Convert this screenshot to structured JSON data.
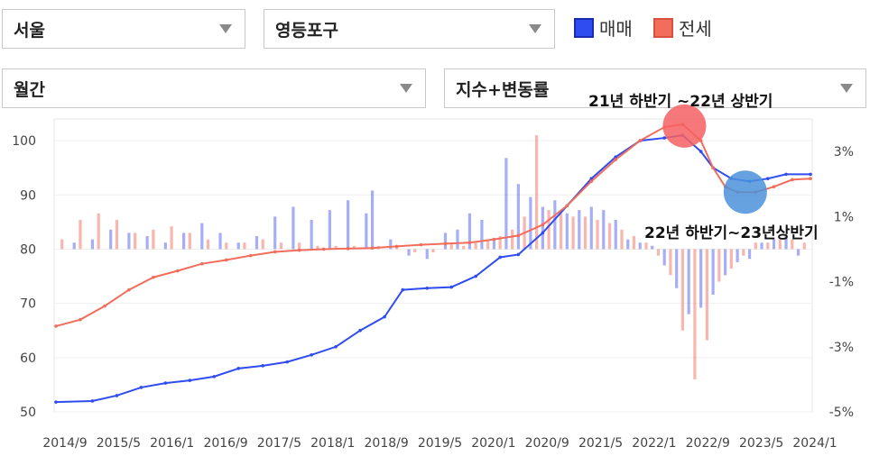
{
  "filters": {
    "region": "서울",
    "district": "영등포구",
    "period": "월간",
    "metric": "지수+변동률"
  },
  "legend": [
    {
      "label": "매매",
      "color": "#2f4cf0"
    },
    {
      "label": "전세",
      "color": "#f26d5b"
    }
  ],
  "chart_data": {
    "type": "line",
    "x_ticks": [
      "2014/9",
      "2015/5",
      "2016/1",
      "2016/9",
      "2017/5",
      "2018/1",
      "2018/9",
      "2019/5",
      "2020/1",
      "2020/9",
      "2021/5",
      "2022/1",
      "2022/9",
      "2023/5",
      "2024/1"
    ],
    "y_left": {
      "ticks": [
        50,
        60,
        70,
        80,
        90,
        100
      ],
      "range": [
        50,
        104
      ]
    },
    "y_right": {
      "ticks": [
        "3%",
        "1%",
        "-1%",
        "-3%",
        "-5%"
      ],
      "range": [
        -5,
        4
      ]
    },
    "series": [
      {
        "name": "매매",
        "color": "#2f4cf0",
        "points": [
          [
            0,
            51.8
          ],
          [
            6,
            52.0
          ],
          [
            10,
            53.0
          ],
          [
            14,
            54.5
          ],
          [
            18,
            55.3
          ],
          [
            22,
            55.8
          ],
          [
            26,
            56.5
          ],
          [
            30,
            58.0
          ],
          [
            34,
            58.5
          ],
          [
            38,
            59.2
          ],
          [
            42,
            60.5
          ],
          [
            46,
            62.0
          ],
          [
            50,
            65.0
          ],
          [
            54,
            67.5
          ],
          [
            57,
            72.5
          ],
          [
            61,
            72.8
          ],
          [
            65,
            73.0
          ],
          [
            69,
            75.0
          ],
          [
            73,
            78.5
          ],
          [
            76,
            79.0
          ],
          [
            80,
            83.0
          ],
          [
            84,
            88.0
          ],
          [
            88,
            93.0
          ],
          [
            92,
            97.0
          ],
          [
            96,
            100.0
          ],
          [
            100,
            100.5
          ],
          [
            103,
            101.0
          ],
          [
            106,
            98.0
          ],
          [
            108,
            95.0
          ],
          [
            111,
            93.0
          ],
          [
            114,
            92.5
          ],
          [
            117,
            93.0
          ],
          [
            120,
            93.8
          ],
          [
            124,
            93.8
          ]
        ]
      },
      {
        "name": "전세",
        "color": "#f26d5b",
        "points": [
          [
            0,
            65.8
          ],
          [
            4,
            67.0
          ],
          [
            8,
            69.5
          ],
          [
            12,
            72.5
          ],
          [
            16,
            74.8
          ],
          [
            20,
            76.0
          ],
          [
            24,
            77.3
          ],
          [
            28,
            78.0
          ],
          [
            32,
            78.8
          ],
          [
            36,
            79.5
          ],
          [
            40,
            79.8
          ],
          [
            44,
            80.0
          ],
          [
            48,
            80.1
          ],
          [
            52,
            80.2
          ],
          [
            56,
            80.5
          ],
          [
            60,
            80.8
          ],
          [
            64,
            81.0
          ],
          [
            68,
            81.2
          ],
          [
            72,
            81.8
          ],
          [
            76,
            82.5
          ],
          [
            80,
            84.5
          ],
          [
            84,
            88.0
          ],
          [
            88,
            92.5
          ],
          [
            92,
            96.5
          ],
          [
            96,
            100.0
          ],
          [
            100,
            102.5
          ],
          [
            103,
            103.0
          ],
          [
            106,
            100.0
          ],
          [
            108,
            95.0
          ],
          [
            110,
            91.5
          ],
          [
            112,
            90.5
          ],
          [
            115,
            90.5
          ],
          [
            118,
            91.5
          ],
          [
            121,
            92.8
          ],
          [
            124,
            93.0
          ]
        ]
      }
    ],
    "rate_bars": {
      "매매": [
        [
          3,
          0.2
        ],
        [
          6,
          0.3
        ],
        [
          9,
          0.6
        ],
        [
          12,
          0.5
        ],
        [
          15,
          0.4
        ],
        [
          18,
          0.2
        ],
        [
          21,
          0.5
        ],
        [
          24,
          0.8
        ],
        [
          27,
          0.5
        ],
        [
          30,
          0.2
        ],
        [
          33,
          0.4
        ],
        [
          36,
          1.0
        ],
        [
          39,
          1.3
        ],
        [
          42,
          0.9
        ],
        [
          45,
          1.2
        ],
        [
          48,
          1.5
        ],
        [
          51,
          1.1
        ],
        [
          52,
          1.8
        ],
        [
          55,
          0.3
        ],
        [
          58,
          -0.2
        ],
        [
          61,
          -0.3
        ],
        [
          64,
          0.5
        ],
        [
          66,
          0.6
        ],
        [
          68,
          1.1
        ],
        [
          70,
          0.9
        ],
        [
          72,
          0.3
        ],
        [
          74,
          2.8
        ],
        [
          76,
          2.0
        ],
        [
          78,
          1.6
        ],
        [
          80,
          1.3
        ],
        [
          82,
          1.5
        ],
        [
          84,
          1.1
        ],
        [
          86,
          1.2
        ],
        [
          88,
          1.3
        ],
        [
          90,
          1.2
        ],
        [
          92,
          0.9
        ],
        [
          94,
          0.3
        ],
        [
          96,
          0.2
        ],
        [
          98,
          0.1
        ],
        [
          100,
          -0.5
        ],
        [
          102,
          -1.2
        ],
        [
          104,
          -2.0
        ],
        [
          106,
          -1.8
        ],
        [
          108,
          -1.4
        ],
        [
          110,
          -0.8
        ],
        [
          112,
          -0.4
        ],
        [
          114,
          -0.3
        ],
        [
          116,
          0.2
        ],
        [
          118,
          0.3
        ],
        [
          120,
          0.4
        ],
        [
          122,
          -0.2
        ]
      ],
      "전세": [
        [
          1,
          0.3
        ],
        [
          4,
          0.9
        ],
        [
          7,
          1.1
        ],
        [
          10,
          0.9
        ],
        [
          13,
          0.5
        ],
        [
          16,
          0.6
        ],
        [
          19,
          0.7
        ],
        [
          22,
          0.5
        ],
        [
          25,
          0.3
        ],
        [
          28,
          0.2
        ],
        [
          31,
          0.2
        ],
        [
          34,
          0.3
        ],
        [
          37,
          0.2
        ],
        [
          40,
          0.2
        ],
        [
          43,
          0.1
        ],
        [
          46,
          0.1
        ],
        [
          49,
          0.1
        ],
        [
          53,
          0.1
        ],
        [
          56,
          0.1
        ],
        [
          59,
          -0.1
        ],
        [
          62,
          -0.1
        ],
        [
          65,
          0.2
        ],
        [
          67,
          0.1
        ],
        [
          69,
          0.2
        ],
        [
          71,
          0.3
        ],
        [
          73,
          0.4
        ],
        [
          75,
          0.6
        ],
        [
          77,
          1.0
        ],
        [
          79,
          3.5
        ],
        [
          81,
          1.2
        ],
        [
          83,
          1.1
        ],
        [
          85,
          1.0
        ],
        [
          87,
          1.0
        ],
        [
          89,
          0.9
        ],
        [
          91,
          0.8
        ],
        [
          93,
          0.6
        ],
        [
          95,
          0.4
        ],
        [
          97,
          0.2
        ],
        [
          99,
          -0.2
        ],
        [
          101,
          -0.8
        ],
        [
          103,
          -2.5
        ],
        [
          105,
          -4.0
        ],
        [
          107,
          -2.8
        ],
        [
          109,
          -1.0
        ],
        [
          111,
          -0.6
        ],
        [
          113,
          -0.2
        ],
        [
          115,
          0.2
        ],
        [
          117,
          0.2
        ],
        [
          119,
          0.3
        ],
        [
          121,
          0.3
        ],
        [
          123,
          0.2
        ]
      ]
    },
    "annotations": [
      {
        "text": "21년 하반기 ~22년 상반기",
        "at": [
          103,
          102.7
        ],
        "color": "#f46063"
      },
      {
        "text": "22년 하반기~23년상반기",
        "at": [
          113,
          90.5
        ],
        "color": "#4b92db"
      }
    ]
  }
}
